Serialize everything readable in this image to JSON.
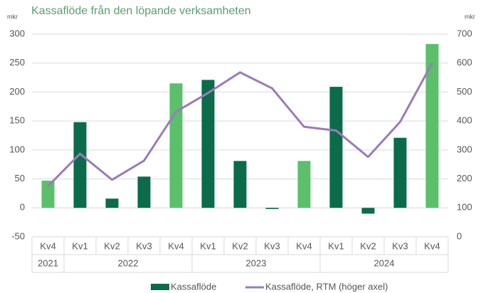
{
  "chart_data": {
    "type": "bar-line",
    "title": "Kassaflöde från den löpande verksamheten",
    "y_unit": "mkr",
    "y2_unit": "mkr",
    "categories": [
      "Kv4",
      "Kv1",
      "Kv2",
      "Kv3",
      "Kv4",
      "Kv1",
      "Kv2",
      "Kv3",
      "Kv4",
      "Kv1",
      "Kv2",
      "Kv3",
      "Kv4"
    ],
    "year_groups": [
      {
        "label": "2021",
        "span": 1
      },
      {
        "label": "2022",
        "span": 4
      },
      {
        "label": "2023",
        "span": 4
      },
      {
        "label": "2024",
        "span": 4
      }
    ],
    "series": [
      {
        "name": "Kassaflöde",
        "type": "bar",
        "color": "#0b6b4b",
        "colors": [
          "#5cbf6b",
          "#0b6b4b",
          "#0b6b4b",
          "#0b6b4b",
          "#5cbf6b",
          "#0b6b4b",
          "#0b6b4b",
          "#0b6b4b",
          "#5cbf6b",
          "#0b6b4b",
          "#0b6b4b",
          "#0b6b4b",
          "#5cbf6b"
        ],
        "values": [
          47,
          148,
          16,
          54,
          215,
          221,
          81,
          -2,
          81,
          209,
          -10,
          121,
          283
        ]
      },
      {
        "name": "Kassaflöde, RTM (höger axel)",
        "type": "line",
        "axis": "y2",
        "color": "#9b7bb8",
        "values": [
          175,
          287,
          197,
          263,
          432,
          497,
          568,
          513,
          380,
          367,
          276,
          397,
          600
        ]
      }
    ],
    "ylim": [
      -50,
      300
    ],
    "yticks": [
      -50,
      0,
      50,
      100,
      150,
      200,
      250,
      300
    ],
    "y2lim": [
      0,
      700
    ],
    "y2ticks": [
      0,
      100,
      200,
      300,
      400,
      500,
      600,
      700
    ],
    "grid": true,
    "legend": "bottom"
  }
}
